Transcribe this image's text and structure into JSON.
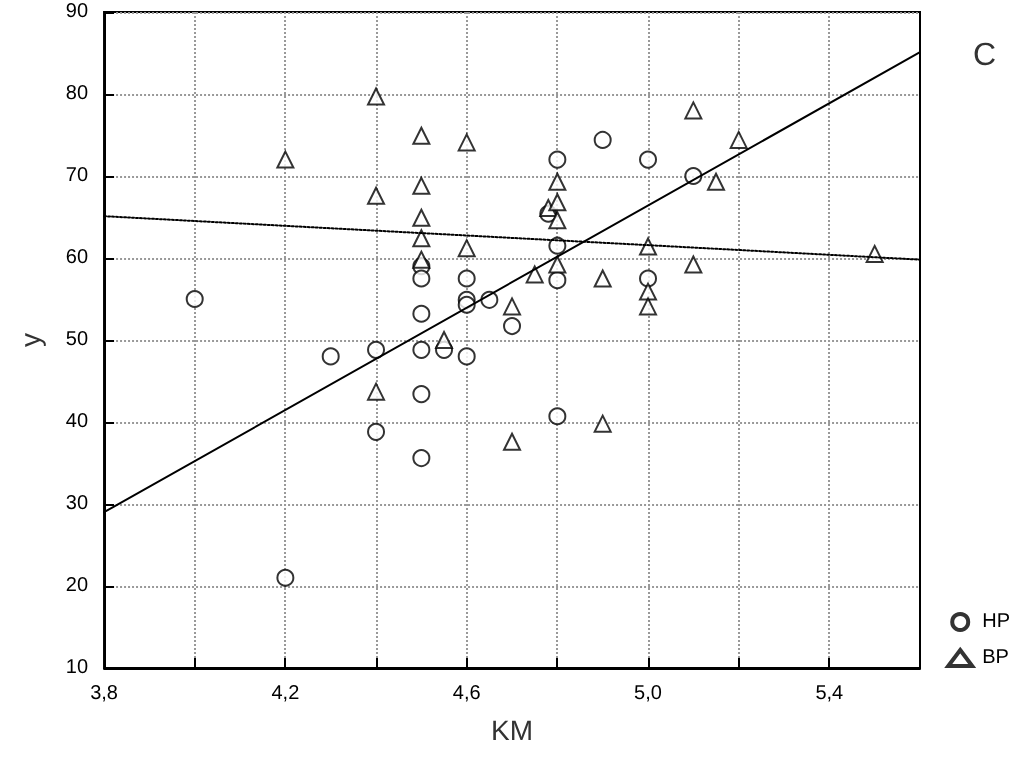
{
  "chart_data": {
    "type": "scatter",
    "xlabel": "KM",
    "ylabel": "y",
    "annotations": [
      "C"
    ],
    "xlim": [
      3.8,
      5.6
    ],
    "xticks": [
      {
        "value": 3.8,
        "label": "3,8"
      },
      {
        "value": 4.0,
        "label": null
      },
      {
        "value": 4.2,
        "label": "4,2"
      },
      {
        "value": 4.4,
        "label": null
      },
      {
        "value": 4.6,
        "label": "4,6"
      },
      {
        "value": 4.8,
        "label": null
      },
      {
        "value": 5.0,
        "label": "5,0"
      },
      {
        "value": 5.2,
        "label": null
      },
      {
        "value": 5.4,
        "label": "5,4"
      }
    ],
    "ylim": [
      10,
      90
    ],
    "yticks": [
      10,
      20,
      30,
      40,
      50,
      60,
      70,
      80,
      90
    ],
    "grid": true,
    "legend": "bottom right",
    "series": [
      {
        "name": "HP",
        "marker": "circle",
        "color": "#000000",
        "x": [
          4.0,
          4.2,
          4.3,
          4.4,
          4.4,
          4.5,
          4.5,
          4.5,
          4.5,
          4.5,
          4.5,
          4.55,
          4.6,
          4.6,
          4.6,
          4.6,
          4.65,
          4.7,
          4.78,
          4.8,
          4.8,
          4.8,
          4.8,
          4.9,
          5.0,
          5.0,
          5.1
        ],
        "values": [
          55,
          21,
          48,
          48.8,
          38.8,
          59,
          57.5,
          53.2,
          48.8,
          43.4,
          35.6,
          48.8,
          57.5,
          54.9,
          54.3,
          48,
          54.9,
          51.7,
          65.4,
          72,
          61.5,
          57.3,
          40.7,
          74.4,
          72,
          57.5,
          70
        ]
      },
      {
        "name": "BP",
        "marker": "triangle",
        "color": "#000000",
        "x": [
          4.2,
          4.4,
          4.4,
          4.4,
          4.5,
          4.5,
          4.5,
          4.5,
          4.5,
          4.55,
          4.6,
          4.6,
          4.7,
          4.7,
          4.75,
          4.78,
          4.8,
          4.8,
          4.8,
          4.8,
          4.9,
          4.9,
          5.0,
          5.0,
          5.0,
          5.1,
          5.1,
          5.15,
          5.2,
          5.5
        ],
        "values": [
          72,
          79.7,
          67.6,
          43.7,
          74.9,
          68.8,
          64.9,
          62.4,
          59.8,
          50,
          74.1,
          61.2,
          54.1,
          37.6,
          58,
          66.1,
          69.3,
          66.8,
          64.6,
          59.2,
          57.5,
          39.8,
          61.4,
          55.9,
          54.1,
          78,
          59.2,
          69.3,
          74.4,
          60.5
        ]
      },
      {
        "type": "line",
        "marker": "none",
        "line_style": "solid",
        "color": "#000000",
        "x": [
          3.8,
          5.6
        ],
        "values": [
          29,
          85.1
        ]
      },
      {
        "type": "line",
        "marker": "none",
        "line_style": "dotted",
        "color": "#000000",
        "x": [
          3.8,
          5.6
        ],
        "values": [
          65.1,
          59.8
        ]
      }
    ]
  }
}
